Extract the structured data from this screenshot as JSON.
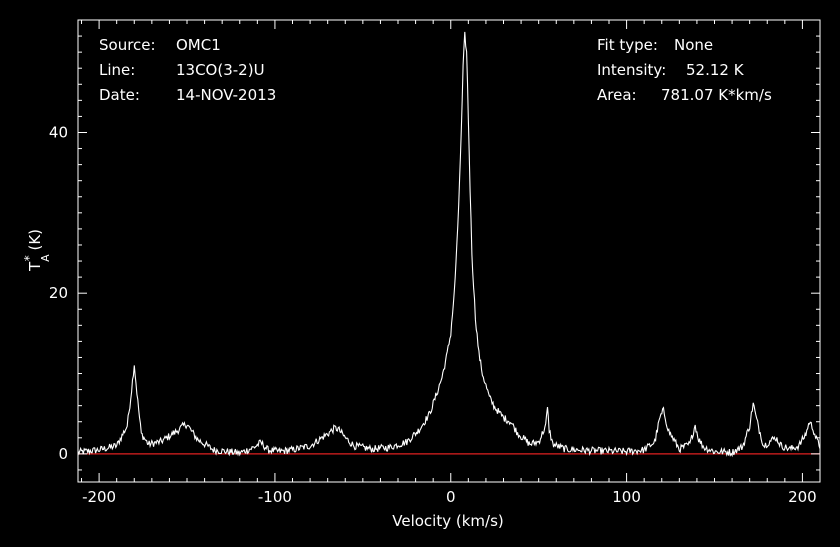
{
  "info_left": [
    {
      "label": "Source:",
      "value": "OMC1"
    },
    {
      "label": "Line:",
      "value": "13CO(3-2)U"
    },
    {
      "label": "Date:",
      "value": "14-NOV-2013"
    }
  ],
  "info_right": [
    {
      "label": "Fit type:",
      "value": "None"
    },
    {
      "label": "Intensity:",
      "value": "52.12 K"
    },
    {
      "label": "Area:",
      "value": "781.07 K*km/s"
    }
  ],
  "chart_data": {
    "type": "line",
    "xlabel": "Velocity (km/s)",
    "ylabel_main": "T",
    "ylabel_sup": "*",
    "ylabel_sub": "A",
    "ylabel_unit": " (K)",
    "xlim": [
      -212,
      210
    ],
    "ylim": [
      -3.5,
      54
    ],
    "x_ticks": [
      -200,
      -100,
      0,
      100,
      200
    ],
    "x_tick_labels": [
      "-200",
      "-100",
      "0",
      "100",
      "200"
    ],
    "y_ticks": [
      0,
      20,
      40
    ],
    "y_tick_labels": [
      "0",
      "20",
      "40"
    ],
    "baseline": 0,
    "colors": {
      "spectrum": "#ffffff",
      "baseline": "#e02020",
      "axes": "#ffffff",
      "background": "#000000"
    },
    "series": [
      {
        "x": [
          -212,
          -200,
          -190,
          -184,
          -182,
          -180,
          -178,
          -176,
          -172,
          -165,
          -156,
          -152,
          -150,
          -148,
          -144,
          -135,
          -120,
          -112,
          -108,
          -104,
          -98,
          -90,
          -80,
          -70,
          -66,
          -64,
          -60,
          -55,
          -45,
          -35,
          -25,
          -18,
          -12,
          -8,
          -5,
          -2,
          0,
          2,
          4,
          6,
          7,
          8,
          9,
          10,
          11,
          12,
          14,
          16,
          18,
          20,
          22,
          25,
          30,
          34,
          38,
          45,
          50,
          54,
          55,
          56,
          58,
          65,
          80,
          100,
          110,
          116,
          119,
          121,
          124,
          130,
          136,
          139,
          141,
          144,
          150,
          160,
          166,
          170,
          172,
          174,
          178,
          183,
          185,
          188,
          193,
          198,
          202,
          204,
          206,
          208,
          210
        ],
        "y": [
          0.2,
          0.5,
          1.0,
          3.5,
          7.0,
          11.2,
          6.5,
          2.5,
          1.2,
          1.5,
          2.8,
          3.5,
          3.7,
          3.0,
          1.8,
          0.5,
          0.1,
          0.8,
          1.4,
          0.5,
          0.3,
          0.5,
          1.0,
          2.5,
          3.2,
          3.1,
          2.0,
          1.0,
          0.6,
          0.8,
          1.5,
          3.0,
          5.0,
          7.5,
          9.5,
          12.5,
          15.0,
          20.0,
          28.0,
          40.0,
          48.0,
          52.1,
          50.0,
          42.0,
          33.0,
          25.0,
          17.0,
          12.5,
          10.0,
          8.5,
          7.0,
          5.8,
          4.5,
          4.0,
          2.6,
          1.2,
          1.5,
          3.5,
          5.7,
          3.0,
          1.2,
          0.6,
          0.4,
          0.3,
          0.5,
          1.5,
          4.5,
          5.4,
          2.8,
          0.6,
          1.2,
          3.6,
          1.8,
          0.8,
          0.3,
          0.2,
          0.9,
          3.5,
          6.3,
          4.2,
          1.0,
          1.8,
          2.0,
          1.0,
          0.6,
          1.0,
          2.5,
          4.0,
          3.2,
          1.8,
          0.9
        ]
      }
    ]
  }
}
